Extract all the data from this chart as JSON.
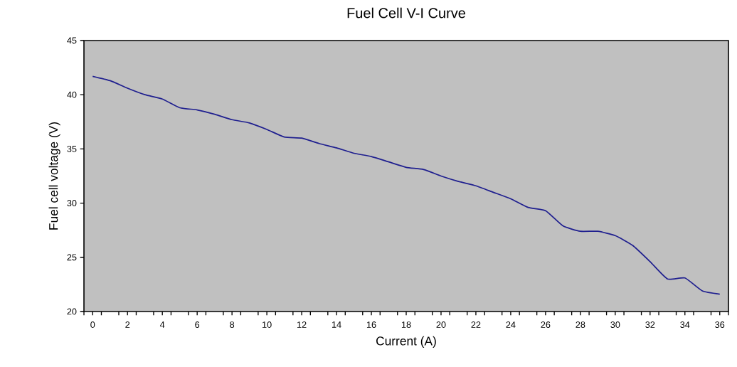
{
  "chart_data": {
    "type": "line",
    "title": "Fuel Cell V-I Curve",
    "xlabel": "Current (A)",
    "ylabel": "Fuel cell voltage (V)",
    "x": [
      0,
      1,
      2,
      3,
      4,
      5,
      6,
      7,
      8,
      9,
      10,
      11,
      12,
      13,
      14,
      15,
      16,
      17,
      18,
      19,
      20,
      21,
      22,
      23,
      24,
      25,
      26,
      27,
      28,
      29,
      30,
      31,
      32,
      33,
      34,
      35,
      36
    ],
    "series": [
      {
        "color": "#1f1f8f",
        "values": [
          41.7,
          41.3,
          40.6,
          40.0,
          39.6,
          38.8,
          38.6,
          38.2,
          37.7,
          37.4,
          36.8,
          36.1,
          36.0,
          35.5,
          35.1,
          34.6,
          34.3,
          33.8,
          33.3,
          33.1,
          32.5,
          32.0,
          31.6,
          31.0,
          30.4,
          29.6,
          29.3,
          27.9,
          27.4,
          27.4,
          27.0,
          26.1,
          24.6,
          23.0,
          23.1,
          21.9,
          21.6
        ]
      }
    ],
    "xlim": [
      -0.5,
      36.5
    ],
    "xticks": [
      {
        "value": -0.5,
        "label": null
      },
      0,
      {
        "value": 0.5,
        "label": null
      },
      {
        "value": 1.5,
        "label": null
      },
      2,
      {
        "value": 2.5,
        "label": null
      },
      {
        "value": 3.5,
        "label": null
      },
      4,
      {
        "value": 4.5,
        "label": null
      },
      {
        "value": 5.5,
        "label": null
      },
      6,
      {
        "value": 6.5,
        "label": null
      },
      {
        "value": 7.5,
        "label": null
      },
      8,
      {
        "value": 8.5,
        "label": null
      },
      {
        "value": 9.5,
        "label": null
      },
      10,
      {
        "value": 10.5,
        "label": null
      },
      {
        "value": 11.5,
        "label": null
      },
      12,
      {
        "value": 12.5,
        "label": null
      },
      {
        "value": 13.5,
        "label": null
      },
      14,
      {
        "value": 14.5,
        "label": null
      },
      {
        "value": 15.5,
        "label": null
      },
      16,
      {
        "value": 16.5,
        "label": null
      },
      {
        "value": 17.5,
        "label": null
      },
      18,
      {
        "value": 18.5,
        "label": null
      },
      {
        "value": 19.5,
        "label": null
      },
      20,
      {
        "value": 20.5,
        "label": null
      },
      {
        "value": 21.5,
        "label": null
      },
      22,
      {
        "value": 22.5,
        "label": null
      },
      {
        "value": 23.5,
        "label": null
      },
      24,
      {
        "value": 24.5,
        "label": null
      },
      {
        "value": 25.5,
        "label": null
      },
      26,
      {
        "value": 26.5,
        "label": null
      },
      {
        "value": 27.5,
        "label": null
      },
      28,
      {
        "value": 28.5,
        "label": null
      },
      {
        "value": 29.5,
        "label": null
      },
      30,
      {
        "value": 30.5,
        "label": null
      },
      {
        "value": 31.5,
        "label": null
      },
      32,
      {
        "value": 32.5,
        "label": null
      },
      {
        "value": 33.5,
        "label": null
      },
      34,
      {
        "value": 34.5,
        "label": null
      },
      {
        "value": 35.5,
        "label": null
      },
      36,
      {
        "value": 36.5,
        "label": null
      }
    ],
    "ylim": [
      20,
      45
    ],
    "yticks": [
      20,
      25,
      30,
      35,
      40,
      45
    ],
    "marker": "none",
    "line_style": "solid"
  }
}
